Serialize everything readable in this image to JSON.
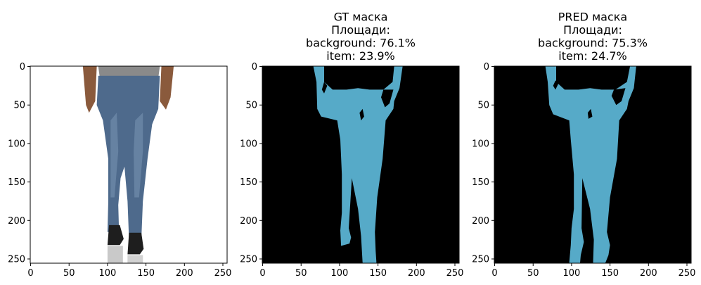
{
  "colors": {
    "mask_item": "#56aac8",
    "mask_background": "#000000",
    "photo_background": "#ffffff",
    "denim": "#4e6a8c",
    "denim_light": "#6d88a8",
    "shirt": "#8a8a8a",
    "skin": "#8a5a3c",
    "shoe": "#1e1e1e"
  },
  "chart_data": [
    {
      "type": "image",
      "panel": "input-photo",
      "title_lines": [],
      "x_ticks": [
        0,
        50,
        100,
        150,
        200,
        250
      ],
      "y_ticks": [
        0,
        50,
        100,
        150,
        200,
        250
      ],
      "xlim": [
        -0.5,
        255.5
      ],
      "ylim": [
        255.5,
        -0.5
      ],
      "content": "photo of jeans"
    },
    {
      "type": "image",
      "panel": "gt-mask",
      "title_lines": [
        "GT маска",
        "Площади:",
        "background: 76.1%",
        "item: 23.9%"
      ],
      "x_ticks": [
        0,
        50,
        100,
        150,
        200,
        250
      ],
      "y_ticks": [
        0,
        50,
        100,
        150,
        200,
        250
      ],
      "xlim": [
        -0.5,
        255.5
      ],
      "ylim": [
        255.5,
        -0.5
      ],
      "areas": {
        "background": 76.1,
        "item": 23.9
      },
      "mask_polygon": [
        [
          66,
          0
        ],
        [
          80,
          0
        ],
        [
          80,
          20
        ],
        [
          91,
          30
        ],
        [
          109,
          30
        ],
        [
          124,
          28
        ],
        [
          139,
          30
        ],
        [
          157,
          30
        ],
        [
          169,
          20
        ],
        [
          171,
          0
        ],
        [
          182,
          0
        ],
        [
          178,
          28
        ],
        [
          171,
          45
        ],
        [
          170,
          55
        ],
        [
          160,
          70
        ],
        [
          156,
          120
        ],
        [
          149,
          170
        ],
        [
          146,
          215
        ],
        [
          147,
          240
        ],
        [
          148,
          255
        ],
        [
          130,
          255
        ],
        [
          128,
          220
        ],
        [
          124,
          185
        ],
        [
          116,
          145
        ],
        [
          112,
          210
        ],
        [
          115,
          222
        ],
        [
          113,
          230
        ],
        [
          102,
          233
        ],
        [
          101,
          213
        ],
        [
          103,
          190
        ],
        [
          103,
          140
        ],
        [
          101,
          95
        ],
        [
          97,
          70
        ],
        [
          76,
          65
        ],
        [
          71,
          55
        ],
        [
          70,
          20
        ]
      ],
      "mask_holes": [
        [
          [
            80,
            20
          ],
          [
            84,
            25
          ],
          [
            80,
            35
          ],
          [
            77,
            30
          ]
        ],
        [
          [
            157,
            30
          ],
          [
            170,
            30
          ],
          [
            165,
            48
          ],
          [
            159,
            53
          ],
          [
            154,
            40
          ]
        ],
        [
          [
            130,
            55
          ],
          [
            132,
            65
          ],
          [
            128,
            70
          ],
          [
            126,
            60
          ]
        ]
      ]
    },
    {
      "type": "image",
      "panel": "pred-mask",
      "title_lines": [
        "PRED маска",
        "Площади:",
        "background: 75.3%",
        "item: 24.7%"
      ],
      "x_ticks": [
        0,
        50,
        100,
        150,
        200,
        250
      ],
      "y_ticks": [
        0,
        50,
        100,
        150,
        200,
        250
      ],
      "xlim": [
        -0.5,
        255.5
      ],
      "ylim": [
        255.5,
        -0.5
      ],
      "areas": {
        "background": 75.3,
        "item": 24.7
      },
      "mask_polygon": [
        [
          66,
          0
        ],
        [
          80,
          0
        ],
        [
          80,
          20
        ],
        [
          91,
          30
        ],
        [
          109,
          30
        ],
        [
          124,
          28
        ],
        [
          139,
          30
        ],
        [
          157,
          30
        ],
        [
          172,
          20
        ],
        [
          176,
          0
        ],
        [
          184,
          0
        ],
        [
          181,
          28
        ],
        [
          174,
          45
        ],
        [
          172,
          55
        ],
        [
          162,
          70
        ],
        [
          159,
          120
        ],
        [
          150,
          170
        ],
        [
          146,
          215
        ],
        [
          150,
          232
        ],
        [
          148,
          245
        ],
        [
          144,
          255
        ],
        [
          128,
          255
        ],
        [
          129,
          225
        ],
        [
          124,
          185
        ],
        [
          114,
          145
        ],
        [
          113,
          210
        ],
        [
          116,
          228
        ],
        [
          112,
          245
        ],
        [
          111,
          255
        ],
        [
          97,
          255
        ],
        [
          99,
          232
        ],
        [
          100,
          210
        ],
        [
          103,
          185
        ],
        [
          103,
          140
        ],
        [
          99,
          95
        ],
        [
          97,
          70
        ],
        [
          76,
          62
        ],
        [
          71,
          50
        ],
        [
          69,
          20
        ]
      ],
      "mask_holes": [
        [
          [
            79,
            18
          ],
          [
            83,
            22
          ],
          [
            79,
            30
          ],
          [
            76,
            25
          ]
        ],
        [
          [
            155,
            30
          ],
          [
            170,
            28
          ],
          [
            165,
            45
          ],
          [
            158,
            50
          ],
          [
            152,
            38
          ]
        ],
        [
          [
            125,
            55
          ],
          [
            127,
            65
          ],
          [
            122,
            68
          ],
          [
            121,
            60
          ]
        ]
      ]
    }
  ]
}
